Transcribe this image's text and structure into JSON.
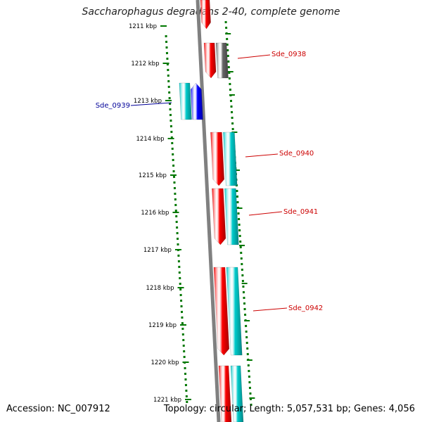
{
  "title": "Saccharophagus degradans 2-40, complete genome",
  "footer": {
    "accession": "Accession: NC_007912",
    "summary": "Topology: circular; Length: 5,057,531 bp; Genes: 4,056"
  },
  "ticks": [
    "1211 kbp",
    "1212 kbp",
    "1213 kbp",
    "1214 kbp",
    "1215 kbp",
    "1216 kbp",
    "1217 kbp",
    "1218 kbp",
    "1219 kbp",
    "1220 kbp",
    "1221 kbp"
  ],
  "colors": {
    "forward_gene": "#ff0000",
    "reverse_gene": "#0000ff",
    "cds": "#00cccc",
    "other": "#666666",
    "backbone": "#808080",
    "ruler": "#007700",
    "label_forward": "#cc0000",
    "label_reverse": "#000099"
  },
  "labels": [
    {
      "name": "Sde_0938",
      "strand": "forward"
    },
    {
      "name": "Sde_0939",
      "strand": "reverse"
    },
    {
      "name": "Sde_0940",
      "strand": "forward"
    },
    {
      "name": "Sde_0941",
      "strand": "forward"
    },
    {
      "name": "Sde_0942",
      "strand": "forward"
    }
  ]
}
